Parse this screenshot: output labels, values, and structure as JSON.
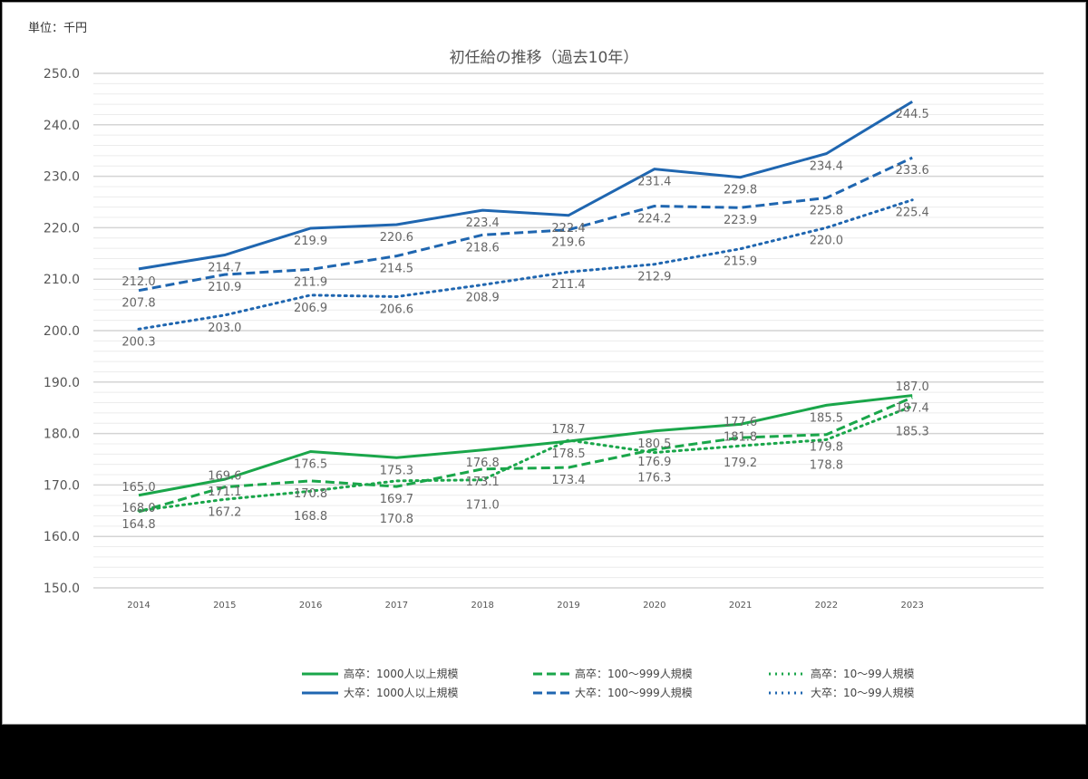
{
  "chart_data": {
    "type": "line",
    "title": "初任給の推移（過去10年）",
    "unit_label": "単位：千円",
    "xlabel": "",
    "ylabel": "",
    "ylim": [
      150,
      250
    ],
    "yticks": [
      "150.0",
      "160.0",
      "170.0",
      "180.0",
      "190.0",
      "200.0",
      "210.0",
      "220.0",
      "230.0",
      "240.0",
      "250.0"
    ],
    "categories": [
      "2014",
      "2015",
      "2016",
      "2017",
      "2018",
      "2019",
      "2020",
      "2021",
      "2022",
      "2023"
    ],
    "grid": true,
    "legend_position": "bottom",
    "series": [
      {
        "name": "高卒：1000人以上規模",
        "color": "#1aa64a",
        "style": "solid",
        "values": [
          168.0,
          171.1,
          176.5,
          175.3,
          176.8,
          178.5,
          180.5,
          181.8,
          185.5,
          187.4
        ]
      },
      {
        "name": "高卒：100～999人規模",
        "color": "#1aa64a",
        "style": "dash",
        "values": [
          164.8,
          169.6,
          170.8,
          169.7,
          173.1,
          173.4,
          176.9,
          179.2,
          179.8,
          187.0
        ]
      },
      {
        "name": "高卒：10～99人規模",
        "color": "#1aa64a",
        "style": "dot",
        "values": [
          165.0,
          167.2,
          168.8,
          170.8,
          171.0,
          178.7,
          176.3,
          177.6,
          178.8,
          185.3
        ]
      },
      {
        "name": "大卒：1000人以上規模",
        "color": "#1f66b0",
        "style": "solid",
        "values": [
          212.0,
          214.7,
          219.9,
          220.6,
          223.4,
          222.4,
          231.4,
          229.8,
          234.4,
          244.5
        ]
      },
      {
        "name": "大卒：100～999人規模",
        "color": "#1f66b0",
        "style": "dash",
        "values": [
          207.8,
          210.9,
          211.9,
          214.5,
          218.6,
          219.6,
          224.2,
          223.9,
          225.8,
          233.6
        ]
      },
      {
        "name": "大卒：10～99人規模",
        "color": "#1f66b0",
        "style": "dot",
        "values": [
          200.3,
          203.0,
          206.9,
          206.6,
          208.9,
          211.4,
          212.9,
          215.9,
          220.0,
          225.4
        ]
      }
    ]
  }
}
